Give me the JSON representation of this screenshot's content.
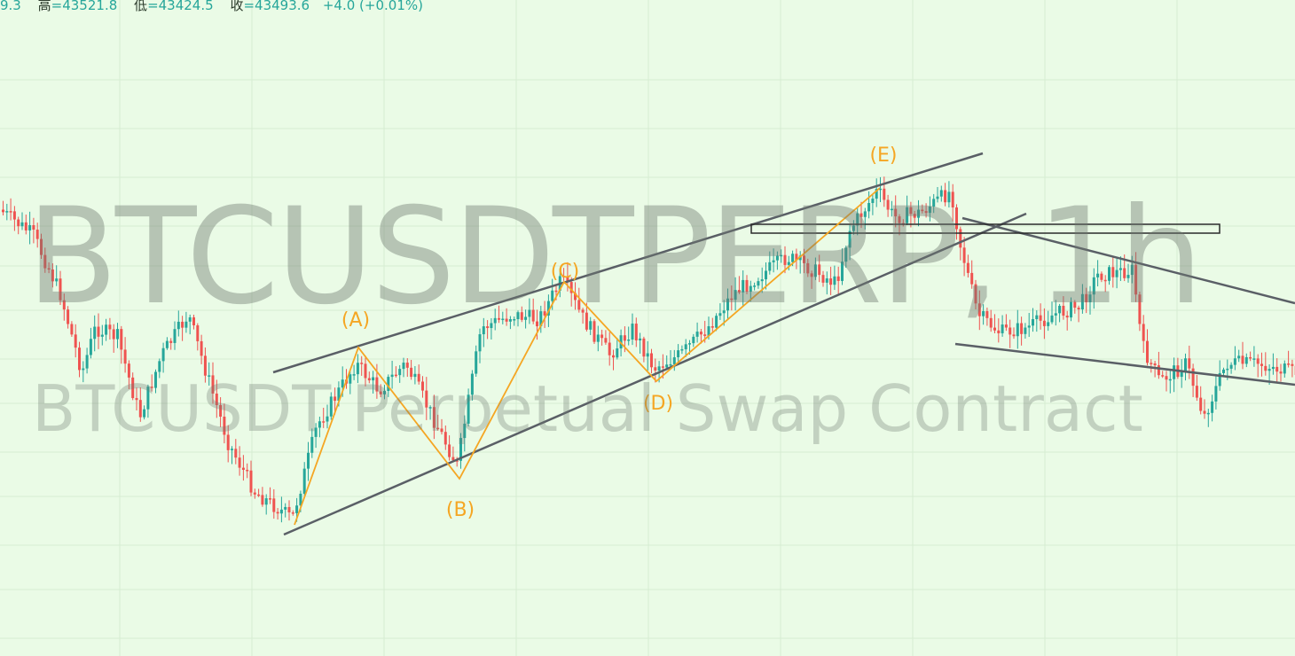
{
  "header": {
    "open_value": "9.3",
    "high_label": "高",
    "high_value": "=43521.8",
    "low_label": "低",
    "low_value": "=43424.5",
    "close_label": "收",
    "close_value": "=43493.6",
    "change_value": "+4.0 (+0.01%)"
  },
  "watermark": {
    "symbol": "BTCUSDTPERP, 1h",
    "description": "BTCUSDT Perpetual Swap Contract"
  },
  "colors": {
    "background": "#eafbe6",
    "grid": "#d6ecd2",
    "up": "#26a69a",
    "down": "#ef5350",
    "wave": "#f5a623",
    "trendline": "#5a5f66"
  },
  "chart_data": {
    "type": "candlestick",
    "title": "",
    "xlabel": "",
    "ylabel": "",
    "grid": true,
    "wave_labels": [
      "(A)",
      "(B)",
      "(C)",
      "(D)",
      "(E)"
    ]
  }
}
